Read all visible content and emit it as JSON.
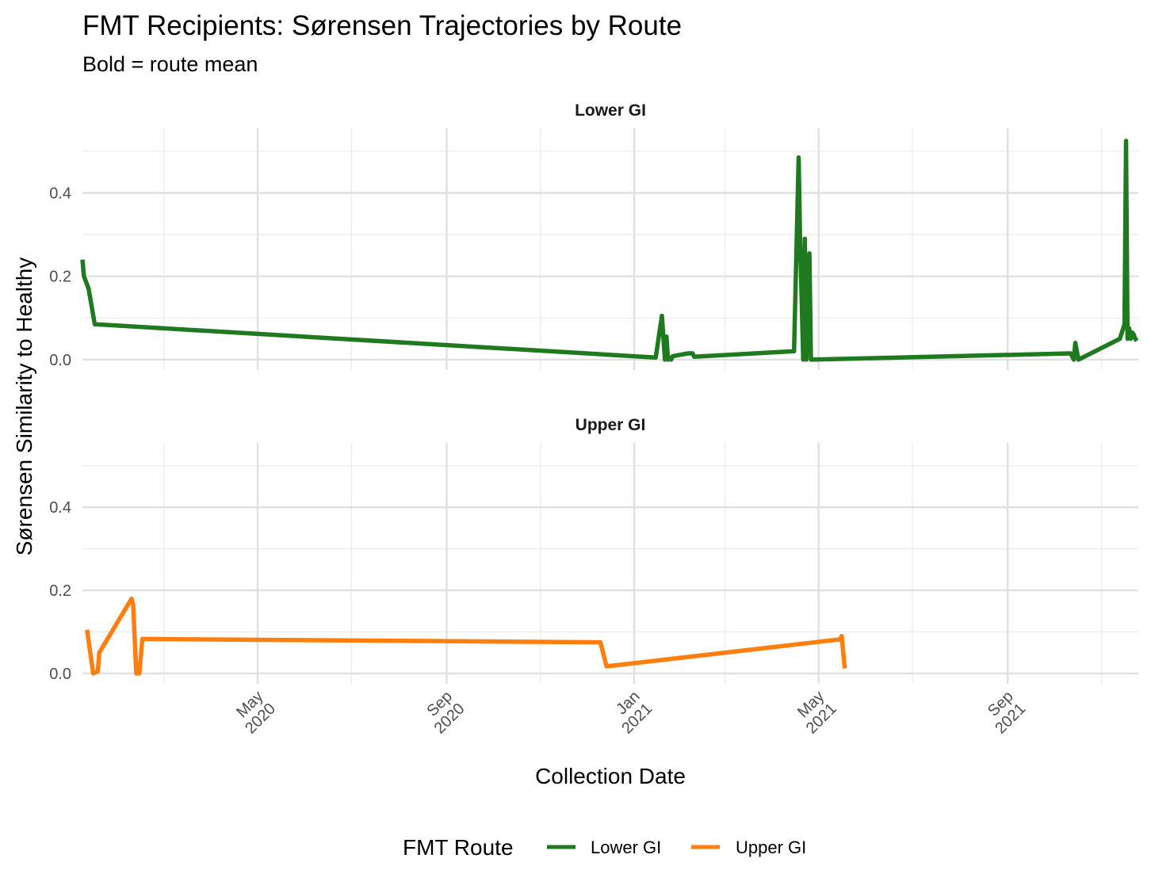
{
  "chart_data": {
    "type": "line",
    "title": "FMT Recipients: Sørensen Trajectories by Route",
    "subtitle": "Bold = route mean",
    "xlabel": "Collection Date",
    "ylabel": "Sørensen Similarity to Healthy",
    "x_range": [
      "2020-01-08",
      "2021-11-25"
    ],
    "ylim": [
      -0.025,
      0.555
    ],
    "y_ticks": [
      "0.0",
      "0.2",
      "0.4"
    ],
    "x_ticks": [
      {
        "date": "2020-05-01",
        "label": [
          "May",
          "2020"
        ]
      },
      {
        "date": "2020-09-01",
        "label": [
          "Sep",
          "2020"
        ]
      },
      {
        "date": "2021-01-01",
        "label": [
          "Jan",
          "2021"
        ]
      },
      {
        "date": "2021-05-01",
        "label": [
          "May",
          "2021"
        ]
      },
      {
        "date": "2021-09-01",
        "label": [
          "Sep",
          "2021"
        ]
      }
    ],
    "x_minor_ticks": [
      "2020-03-01",
      "2020-07-01",
      "2020-11-01",
      "2021-03-01",
      "2021-07-01",
      "2021-11-01"
    ],
    "grid": true,
    "legend_position": "bottom",
    "legend_title": "FMT Route",
    "facets": [
      {
        "label": "Lower GI",
        "series": "Lower GI",
        "color": "#1f7a1f",
        "points": [
          [
            "2020-01-08",
            0.24
          ],
          [
            "2020-01-09",
            0.2
          ],
          [
            "2020-01-12",
            0.17
          ],
          [
            "2020-01-16",
            0.085
          ],
          [
            "2021-01-15",
            0.005
          ],
          [
            "2021-01-19",
            0.105
          ],
          [
            "2021-01-21",
            0.0
          ],
          [
            "2021-01-22",
            0.055
          ],
          [
            "2021-01-23",
            0.0
          ],
          [
            "2021-01-24",
            0.005
          ],
          [
            "2021-01-25",
            0.0
          ],
          [
            "2021-01-26",
            0.008
          ],
          [
            "2021-02-05",
            0.015
          ],
          [
            "2021-02-08",
            0.015
          ],
          [
            "2021-02-09",
            0.007
          ],
          [
            "2021-04-15",
            0.02
          ],
          [
            "2021-04-18",
            0.485
          ],
          [
            "2021-04-19",
            0.28
          ],
          [
            "2021-04-21",
            0.0
          ],
          [
            "2021-04-22",
            0.29
          ],
          [
            "2021-04-23",
            0.0
          ],
          [
            "2021-04-25",
            0.255
          ],
          [
            "2021-04-26",
            0.0
          ],
          [
            "2021-10-12",
            0.015
          ],
          [
            "2021-10-14",
            0.0
          ],
          [
            "2021-10-15",
            0.04
          ],
          [
            "2021-10-17",
            0.0
          ],
          [
            "2021-11-13",
            0.05
          ],
          [
            "2021-11-16",
            0.085
          ],
          [
            "2021-11-17",
            0.525
          ],
          [
            "2021-11-18",
            0.05
          ],
          [
            "2021-11-19",
            0.075
          ],
          [
            "2021-11-20",
            0.05
          ],
          [
            "2021-11-21",
            0.065
          ],
          [
            "2021-11-22",
            0.06
          ],
          [
            "2021-11-23",
            0.05
          ],
          [
            "2021-11-24",
            0.045
          ]
        ]
      },
      {
        "label": "Upper GI",
        "series": "Upper GI",
        "color": "#ff7f0e",
        "points": [
          [
            "2020-01-11",
            0.105
          ],
          [
            "2020-01-15",
            0.0
          ],
          [
            "2020-01-18",
            0.005
          ],
          [
            "2020-01-19",
            0.05
          ],
          [
            "2020-02-09",
            0.18
          ],
          [
            "2020-02-10",
            0.165
          ],
          [
            "2020-02-12",
            0.0
          ],
          [
            "2020-02-14",
            0.0
          ],
          [
            "2020-02-16",
            0.083
          ],
          [
            "2020-12-10",
            0.075
          ],
          [
            "2020-12-14",
            0.017
          ],
          [
            "2021-05-15",
            0.082
          ],
          [
            "2021-05-16",
            0.09
          ],
          [
            "2021-05-18",
            0.012
          ]
        ]
      }
    ],
    "series": [
      {
        "name": "Lower GI",
        "color": "#1f7a1f"
      },
      {
        "name": "Upper GI",
        "color": "#ff7f0e"
      }
    ]
  }
}
